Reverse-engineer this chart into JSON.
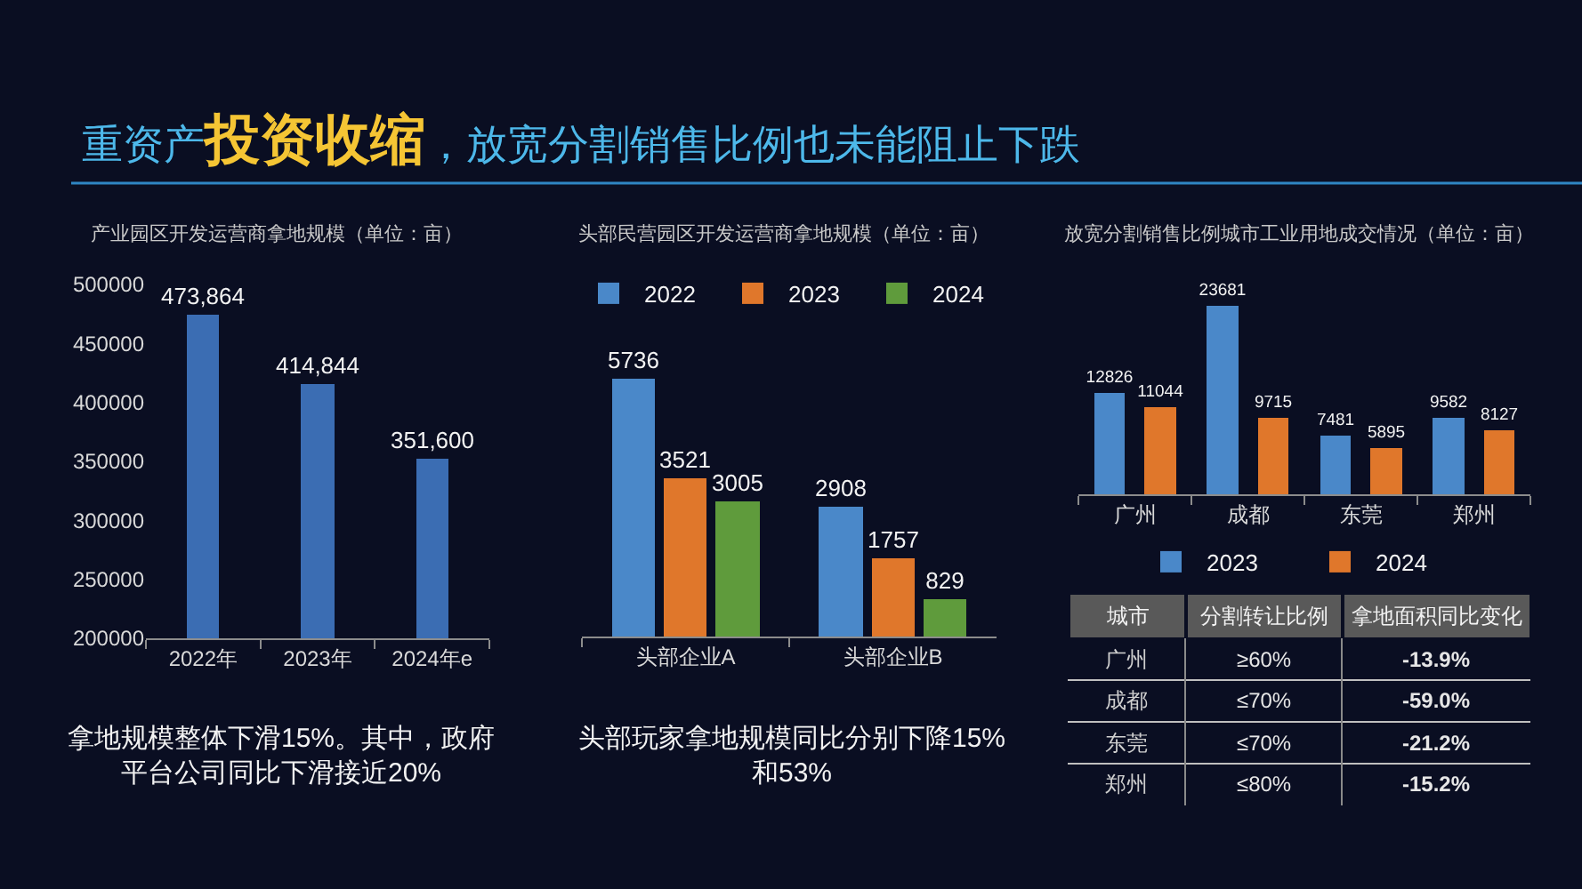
{
  "chart_data": [
    {
      "type": "other",
      "title": "重资产投资收缩，放宽分割销售比例也未能阻止下跌"
    },
    {
      "type": "bar",
      "title": "产业园区开发运营商拿地规模（单位：亩）",
      "categories": [
        "2022年",
        "2023年",
        "2024年e"
      ],
      "values": [
        473864,
        414844,
        351600
      ],
      "color": "#3b6db3",
      "value_labels": [
        "473,864",
        "414,844",
        "351,600"
      ],
      "ylim": [
        200000,
        500000
      ],
      "yticks": [
        200000,
        250000,
        300000,
        350000,
        400000,
        450000,
        500000
      ],
      "annotations": [
        "拿地规模整体下滑15%。其中，政府平台公司同比下滑接近20%"
      ]
    },
    {
      "type": "bar",
      "title": "头部民营园区开发运营商拿地规模（单位：亩）",
      "categories": [
        "头部企业A",
        "头部企业B"
      ],
      "series": [
        {
          "name": "2022",
          "color": "#4a88c9",
          "values": [
            5736,
            2908
          ]
        },
        {
          "name": "2023",
          "color": "#e0772b",
          "values": [
            3521,
            1757
          ]
        },
        {
          "name": "2024",
          "color": "#5f9b3c",
          "values": [
            3005,
            829
          ]
        }
      ],
      "data_labels": true,
      "legend": "top",
      "annotations": [
        "头部玩家拿地规模同比分别下降15%和53%"
      ]
    },
    {
      "type": "bar",
      "title": "放宽分割销售比例城市工业用地成交情况（单位：亩）",
      "categories": [
        "广州",
        "成都",
        "东莞",
        "郑州"
      ],
      "series": [
        {
          "name": "2023",
          "color": "#4a88c9",
          "values": [
            12826,
            23681,
            7481,
            9582
          ]
        },
        {
          "name": "2024",
          "color": "#e0772b",
          "values": [
            11044,
            9715,
            5895,
            8127
          ]
        }
      ],
      "data_labels": true,
      "legend": "bottom"
    },
    {
      "type": "other",
      "categories": [
        "城市",
        "分割转让比例",
        "拿地面积同比变化"
      ],
      "cell_labels": [
        [
          "广州",
          "≥60%",
          "-13.9%"
        ],
        [
          "成都",
          "≤70%",
          "-59.0%"
        ],
        [
          "东莞",
          "≤70%",
          "-21.2%"
        ],
        [
          "郑州",
          "≤80%",
          "-15.2%"
        ]
      ]
    }
  ]
}
